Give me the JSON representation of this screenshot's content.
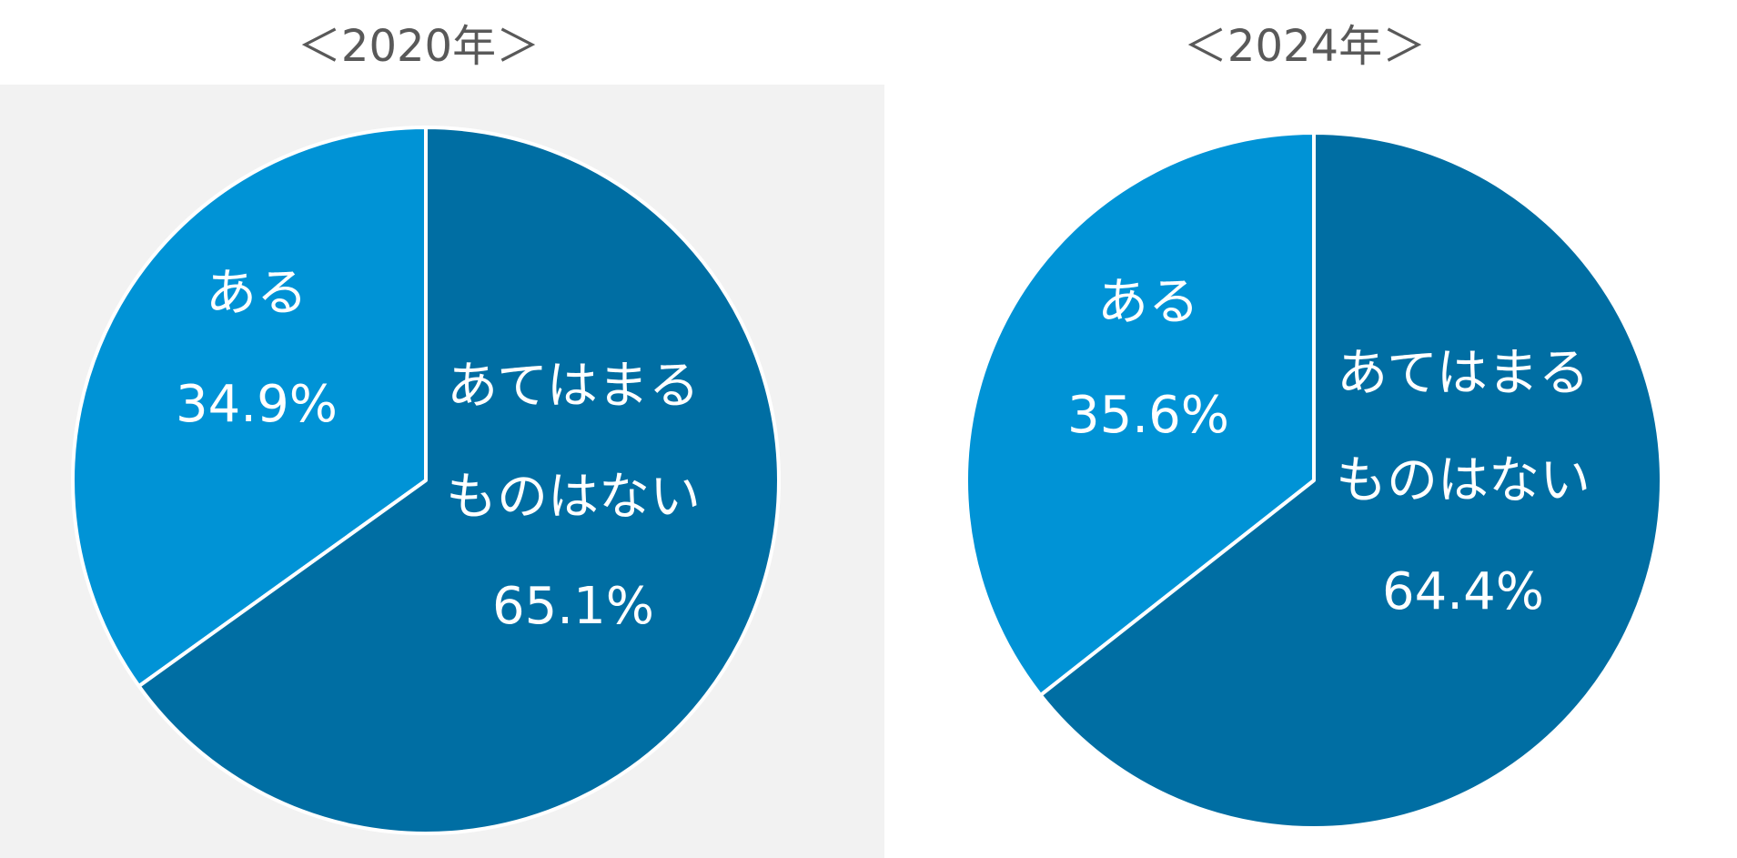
{
  "colors": {
    "slice_aru": "#0093d6",
    "slice_nai": "#006ea3",
    "separator": "#ffffff",
    "panel_background": "#f2f2f2"
  },
  "chart_data": [
    {
      "type": "pie",
      "title": "＜2020年＞",
      "slices": [
        {
          "label_lines": [
            "ある"
          ],
          "value": 34.9,
          "value_label": "34.9%",
          "color": "#0093d6"
        },
        {
          "label_lines": [
            "あてはまる",
            "ものはない"
          ],
          "value": 65.1,
          "value_label": "65.1%",
          "color": "#006ea3"
        }
      ]
    },
    {
      "type": "pie",
      "title": "＜2024年＞",
      "slices": [
        {
          "label_lines": [
            "ある"
          ],
          "value": 35.6,
          "value_label": "35.6%",
          "color": "#0093d6"
        },
        {
          "label_lines": [
            "あてはまる",
            "ものはない"
          ],
          "value": 64.4,
          "value_label": "64.4%",
          "color": "#006ea3"
        }
      ]
    }
  ]
}
